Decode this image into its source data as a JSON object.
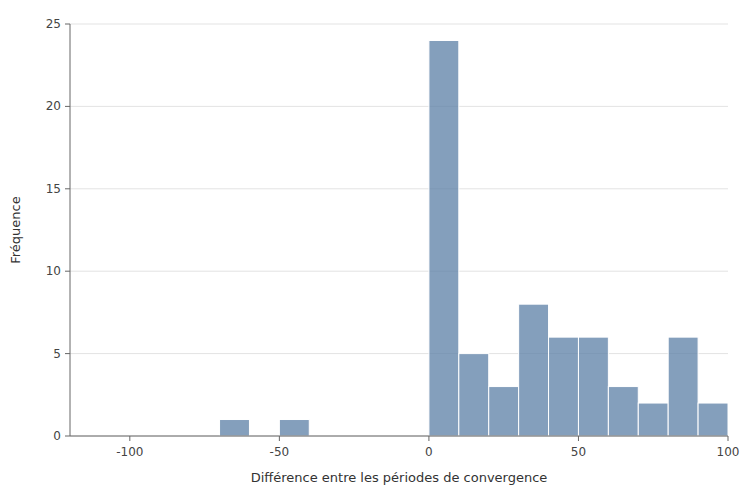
{
  "chart_data": {
    "type": "histogram",
    "bins": [
      -120,
      -110,
      -100,
      -90,
      -80,
      -70,
      -60,
      -50,
      -40,
      -30,
      -20,
      -10,
      0,
      10,
      20,
      30,
      40,
      50,
      60,
      70,
      80,
      90,
      100
    ],
    "values": [
      0,
      0,
      0,
      0,
      0,
      1,
      0,
      1,
      0,
      0,
      0,
      0,
      24,
      5,
      3,
      8,
      6,
      6,
      3,
      2,
      6,
      2
    ],
    "xlabel": "Différence entre les périodes de convergence",
    "ylabel": "Fréquence",
    "xlim": [
      -120,
      100
    ],
    "ylim": [
      0,
      25
    ],
    "xticks": [
      -100,
      -50,
      0,
      50,
      100
    ],
    "yticks": [
      0,
      5,
      10,
      15,
      20,
      25
    ],
    "color": "#5b7fa6",
    "grid": "y"
  }
}
